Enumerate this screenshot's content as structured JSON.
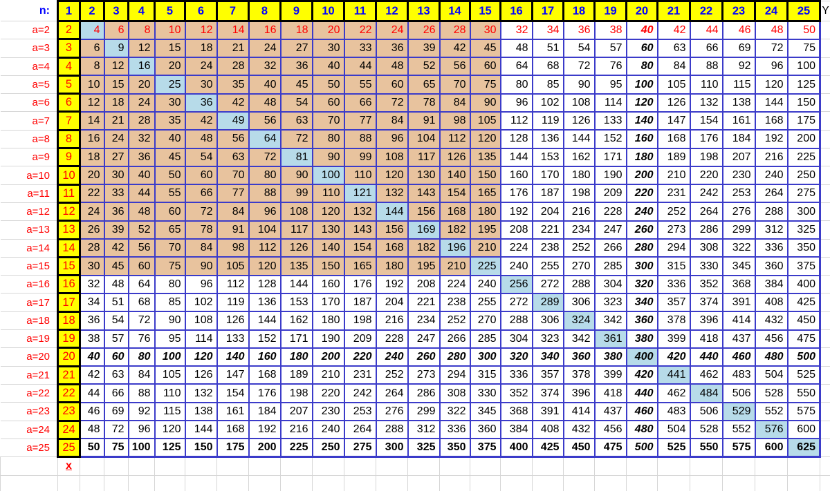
{
  "table": {
    "header": {
      "corner_label": "n:",
      "columns": [
        1,
        2,
        3,
        4,
        5,
        6,
        7,
        8,
        9,
        10,
        11,
        12,
        13,
        14,
        15,
        16,
        17,
        18,
        19,
        20,
        21,
        22,
        23,
        24,
        25
      ],
      "y_label": "Y"
    },
    "rows": [
      {
        "label": "a=2",
        "a": 2,
        "values": [
          2,
          4,
          6,
          8,
          10,
          12,
          14,
          16,
          18,
          20,
          22,
          24,
          26,
          28,
          30,
          32,
          34,
          36,
          38,
          40,
          42,
          44,
          46,
          48,
          50
        ]
      },
      {
        "label": "a=3",
        "a": 3,
        "values": [
          3,
          6,
          9,
          12,
          15,
          18,
          21,
          24,
          27,
          30,
          33,
          36,
          39,
          42,
          45,
          48,
          51,
          54,
          57,
          60,
          63,
          66,
          69,
          72,
          75
        ]
      },
      {
        "label": "a=4",
        "a": 4,
        "values": [
          4,
          8,
          12,
          16,
          20,
          24,
          28,
          32,
          36,
          40,
          44,
          48,
          52,
          56,
          60,
          64,
          68,
          72,
          76,
          80,
          84,
          88,
          92,
          96,
          100
        ]
      },
      {
        "label": "a=5",
        "a": 5,
        "values": [
          5,
          10,
          15,
          20,
          25,
          30,
          35,
          40,
          45,
          50,
          55,
          60,
          65,
          70,
          75,
          80,
          85,
          90,
          95,
          100,
          105,
          110,
          115,
          120,
          125
        ]
      },
      {
        "label": "a=6",
        "a": 6,
        "values": [
          6,
          12,
          18,
          24,
          30,
          36,
          42,
          48,
          54,
          60,
          66,
          72,
          78,
          84,
          90,
          96,
          102,
          108,
          114,
          120,
          126,
          132,
          138,
          144,
          150
        ]
      },
      {
        "label": "a=7",
        "a": 7,
        "values": [
          7,
          14,
          21,
          28,
          35,
          42,
          49,
          56,
          63,
          70,
          77,
          84,
          91,
          98,
          105,
          112,
          119,
          126,
          133,
          140,
          147,
          154,
          161,
          168,
          175
        ]
      },
      {
        "label": "a=8",
        "a": 8,
        "values": [
          8,
          16,
          24,
          32,
          40,
          48,
          56,
          64,
          72,
          80,
          88,
          96,
          104,
          112,
          120,
          128,
          136,
          144,
          152,
          160,
          168,
          176,
          184,
          192,
          200
        ]
      },
      {
        "label": "a=9",
        "a": 9,
        "values": [
          9,
          18,
          27,
          36,
          45,
          54,
          63,
          72,
          81,
          90,
          99,
          108,
          117,
          126,
          135,
          144,
          153,
          162,
          171,
          180,
          189,
          198,
          207,
          216,
          225
        ]
      },
      {
        "label": "a=10",
        "a": 10,
        "values": [
          10,
          20,
          30,
          40,
          50,
          60,
          70,
          80,
          90,
          100,
          110,
          120,
          130,
          140,
          150,
          160,
          170,
          180,
          190,
          200,
          210,
          220,
          230,
          240,
          250
        ]
      },
      {
        "label": "a=11",
        "a": 11,
        "values": [
          11,
          22,
          33,
          44,
          55,
          66,
          77,
          88,
          99,
          110,
          121,
          132,
          143,
          154,
          165,
          176,
          187,
          198,
          209,
          220,
          231,
          242,
          253,
          264,
          275
        ]
      },
      {
        "label": "a=12",
        "a": 12,
        "values": [
          12,
          24,
          36,
          48,
          60,
          72,
          84,
          96,
          108,
          120,
          132,
          144,
          156,
          168,
          180,
          192,
          204,
          216,
          228,
          240,
          252,
          264,
          276,
          288,
          300
        ]
      },
      {
        "label": "a=13",
        "a": 13,
        "values": [
          13,
          26,
          39,
          52,
          65,
          78,
          91,
          104,
          117,
          130,
          143,
          156,
          169,
          182,
          195,
          208,
          221,
          234,
          247,
          260,
          273,
          286,
          299,
          312,
          325
        ]
      },
      {
        "label": "a=14",
        "a": 14,
        "values": [
          14,
          28,
          42,
          56,
          70,
          84,
          98,
          112,
          126,
          140,
          154,
          168,
          182,
          196,
          210,
          224,
          238,
          252,
          266,
          280,
          294,
          308,
          322,
          336,
          350
        ]
      },
      {
        "label": "a=15",
        "a": 15,
        "values": [
          15,
          30,
          45,
          60,
          75,
          90,
          105,
          120,
          135,
          150,
          165,
          180,
          195,
          210,
          225,
          240,
          255,
          270,
          285,
          300,
          315,
          330,
          345,
          360,
          375
        ]
      },
      {
        "label": "a=16",
        "a": 16,
        "values": [
          16,
          32,
          48,
          64,
          80,
          96,
          112,
          128,
          144,
          160,
          176,
          192,
          208,
          224,
          240,
          256,
          272,
          288,
          304,
          320,
          336,
          352,
          368,
          384,
          400
        ]
      },
      {
        "label": "a=17",
        "a": 17,
        "values": [
          17,
          34,
          51,
          68,
          85,
          102,
          119,
          136,
          153,
          170,
          187,
          204,
          221,
          238,
          255,
          272,
          289,
          306,
          323,
          340,
          357,
          374,
          391,
          408,
          425
        ]
      },
      {
        "label": "a=18",
        "a": 18,
        "values": [
          18,
          36,
          54,
          72,
          90,
          108,
          126,
          144,
          162,
          180,
          198,
          216,
          234,
          252,
          270,
          288,
          306,
          324,
          342,
          360,
          378,
          396,
          414,
          432,
          450
        ]
      },
      {
        "label": "a=19",
        "a": 19,
        "values": [
          19,
          38,
          57,
          76,
          95,
          114,
          133,
          152,
          171,
          190,
          209,
          228,
          247,
          266,
          285,
          304,
          323,
          342,
          361,
          380,
          399,
          418,
          437,
          456,
          475
        ]
      },
      {
        "label": "a=20",
        "a": 20,
        "values": [
          20,
          40,
          60,
          80,
          100,
          120,
          140,
          160,
          180,
          200,
          220,
          240,
          260,
          280,
          300,
          320,
          340,
          360,
          380,
          400,
          420,
          440,
          460,
          480,
          500
        ]
      },
      {
        "label": "a=21",
        "a": 21,
        "values": [
          21,
          42,
          63,
          84,
          105,
          126,
          147,
          168,
          189,
          210,
          231,
          252,
          273,
          294,
          315,
          336,
          357,
          378,
          399,
          420,
          441,
          462,
          483,
          504,
          525
        ]
      },
      {
        "label": "a=22",
        "a": 22,
        "values": [
          22,
          44,
          66,
          88,
          110,
          132,
          154,
          176,
          198,
          220,
          242,
          264,
          286,
          308,
          330,
          352,
          374,
          396,
          418,
          440,
          462,
          484,
          506,
          528,
          550
        ]
      },
      {
        "label": "a=23",
        "a": 23,
        "values": [
          23,
          46,
          69,
          92,
          115,
          138,
          161,
          184,
          207,
          230,
          253,
          276,
          299,
          322,
          345,
          368,
          391,
          414,
          437,
          460,
          483,
          506,
          529,
          552,
          575
        ]
      },
      {
        "label": "a=24",
        "a": 24,
        "values": [
          24,
          48,
          72,
          96,
          120,
          144,
          168,
          192,
          216,
          240,
          264,
          288,
          312,
          336,
          360,
          384,
          408,
          432,
          456,
          480,
          504,
          528,
          552,
          576,
          600
        ]
      },
      {
        "label": "a=25",
        "a": 25,
        "values": [
          25,
          50,
          75,
          100,
          125,
          150,
          175,
          200,
          225,
          250,
          275,
          300,
          325,
          350,
          375,
          400,
          425,
          450,
          475,
          500,
          525,
          550,
          575,
          600,
          625
        ]
      }
    ],
    "footer": {
      "x_label": "x"
    },
    "formatting": {
      "header_text_color": "#0000ff",
      "header_fill": "#ffff00",
      "n1_column_fill": "#ffff00",
      "n1_column_text_color": "#ff0000",
      "row_label_text_color": "#ff0000",
      "tan_block_fill": "#e8c39e",
      "tan_block_range": {
        "a": [
          2,
          15
        ],
        "n": [
          2,
          15
        ]
      },
      "diagonal_square_fill": "#b7dbe9",
      "diagonal_rule": "cells where a equals n (perfect squares) are highlighted",
      "red_text_row_a": 2,
      "bold_italic_row_a": 20,
      "bold_italic_col_n": 20,
      "bold_row_a": 25,
      "body_border_color": "#3b3bc9",
      "grid_line_color": "#d6d6d6"
    }
  }
}
